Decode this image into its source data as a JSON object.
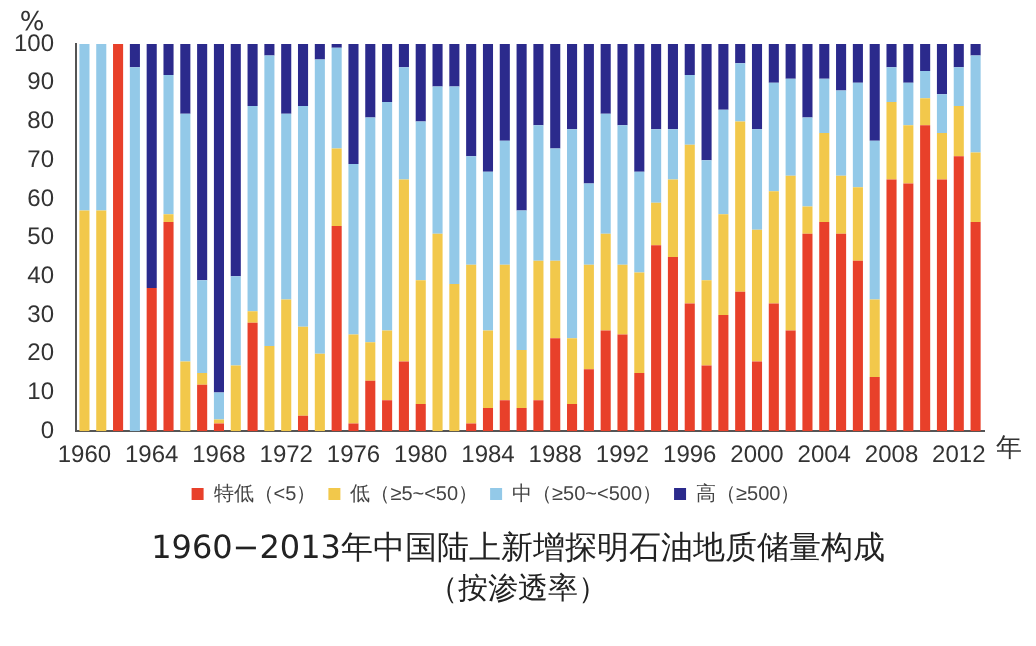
{
  "chart_data": {
    "type": "bar",
    "stacked": true,
    "title": "1960−2013年中国陆上新增探明石油地质储量构成",
    "subtitle": "（按渗透率）",
    "xlabel": "年",
    "ylabel": "%",
    "categories": [
      "1960",
      null,
      null,
      null,
      "1964",
      null,
      null,
      null,
      "1968",
      null,
      null,
      null,
      "1972",
      null,
      null,
      null,
      "1976",
      null,
      null,
      null,
      "1980",
      null,
      null,
      null,
      "1984",
      null,
      null,
      null,
      "1988",
      null,
      null,
      null,
      "1992",
      null,
      null,
      null,
      "1996",
      null,
      null,
      null,
      "2000",
      null,
      null,
      null,
      "2004",
      null,
      null,
      null,
      "2008",
      null,
      null,
      null,
      "2012",
      null
    ],
    "series": [
      {
        "name": "特低（<5）",
        "color": "#e8402a",
        "values": [
          0,
          0,
          100,
          0,
          37,
          54,
          0,
          12,
          2,
          0,
          28,
          0,
          0,
          4,
          0,
          53,
          2,
          13,
          8,
          18,
          7,
          0,
          0,
          2,
          6,
          8,
          6,
          8,
          24,
          7,
          16,
          26,
          25,
          15,
          48,
          45,
          33,
          17,
          30,
          36,
          18,
          33,
          26,
          51,
          54,
          51,
          44,
          14,
          65,
          64,
          79,
          65,
          71,
          54
        ]
      },
      {
        "name": "低（≥5~<50）",
        "color": "#f2c84b",
        "values": [
          57,
          57,
          0,
          0,
          0,
          2,
          18,
          3,
          1,
          17,
          3,
          22,
          34,
          23,
          20,
          20,
          23,
          10,
          18,
          47,
          32,
          51,
          38,
          41,
          20,
          35,
          15,
          36,
          20,
          17,
          27,
          25,
          18,
          26,
          11,
          20,
          41,
          22,
          26,
          44,
          34,
          29,
          40,
          7,
          23,
          15,
          19,
          20,
          20,
          15,
          7,
          12,
          13,
          18
        ]
      },
      {
        "name": "中（≥50~<500）",
        "color": "#93c9e8",
        "values": [
          43,
          43,
          0,
          94,
          0,
          36,
          64,
          24,
          7,
          23,
          53,
          75,
          48,
          57,
          76,
          26,
          44,
          58,
          59,
          29,
          41,
          38,
          51,
          28,
          41,
          32,
          36,
          35,
          29,
          54,
          21,
          31,
          36,
          26,
          19,
          13,
          18,
          31,
          27,
          15,
          26,
          28,
          25,
          23,
          14,
          22,
          27,
          41,
          9,
          11,
          7,
          10,
          10,
          25
        ]
      },
      {
        "name": "高（≥500）",
        "color": "#2b2a8c",
        "values": [
          0,
          0,
          0,
          6,
          63,
          8,
          18,
          61,
          90,
          60,
          16,
          3,
          18,
          16,
          4,
          1,
          31,
          19,
          15,
          6,
          20,
          11,
          11,
          29,
          33,
          25,
          43,
          21,
          27,
          22,
          36,
          18,
          21,
          33,
          22,
          22,
          8,
          30,
          17,
          5,
          22,
          10,
          9,
          19,
          9,
          12,
          10,
          25,
          6,
          10,
          7,
          13,
          6,
          3
        ]
      }
    ],
    "ylim": [
      0,
      100
    ],
    "yticks": [
      0,
      10,
      20,
      30,
      40,
      50,
      60,
      70,
      80,
      90,
      100
    ],
    "grid": false,
    "legend": "bottom"
  }
}
